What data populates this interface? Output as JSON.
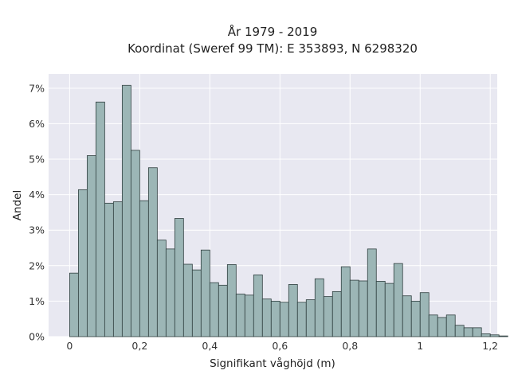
{
  "chart_data": {
    "type": "bar",
    "title_line1": "År 1979 - 2019",
    "title_line2": "Koordinat (Sweref 99 TM): E 353893, N 6298320",
    "xlabel": "Signifikant våghöjd (m)",
    "ylabel": "Andel",
    "bin_width": 0.025,
    "bin_start": 0.0,
    "xlim": [
      -0.06,
      1.22
    ],
    "ylim": [
      0,
      7.4
    ],
    "x_ticks": [
      {
        "value": 0,
        "label": "0"
      },
      {
        "value": 0.2,
        "label": "0,2"
      },
      {
        "value": 0.4,
        "label": "0,4"
      },
      {
        "value": 0.6,
        "label": "0,6"
      },
      {
        "value": 0.8,
        "label": "0,8"
      },
      {
        "value": 1.0,
        "label": "1"
      },
      {
        "value": 1.2,
        "label": "1,2"
      }
    ],
    "y_ticks": [
      {
        "value": 0,
        "label": "0%"
      },
      {
        "value": 1,
        "label": "1%"
      },
      {
        "value": 2,
        "label": "2%"
      },
      {
        "value": 3,
        "label": "3%"
      },
      {
        "value": 4,
        "label": "4%"
      },
      {
        "value": 5,
        "label": "5%"
      },
      {
        "value": 6,
        "label": "6%"
      },
      {
        "value": 7,
        "label": "7%"
      }
    ],
    "unit": "%",
    "values": [
      1.79,
      4.14,
      5.1,
      6.61,
      3.76,
      3.8,
      7.08,
      5.25,
      3.83,
      4.76,
      2.72,
      2.47,
      3.33,
      2.04,
      1.88,
      2.44,
      1.52,
      1.45,
      2.03,
      1.2,
      1.17,
      1.74,
      1.06,
      1.0,
      0.97,
      1.47,
      0.97,
      1.04,
      1.63,
      1.13,
      1.27,
      1.97,
      1.59,
      1.57,
      2.47,
      1.56,
      1.5,
      2.06,
      1.15,
      1.0,
      1.24,
      0.61,
      0.54,
      0.61,
      0.32,
      0.25,
      0.25,
      0.08,
      0.05,
      0.02
    ],
    "grid": true,
    "colors": {
      "bar_fill": "#9cb6b6",
      "bar_stroke": "#2f3f3f",
      "plot_bg": "#e8e8f1",
      "grid": "#ffffff"
    }
  }
}
